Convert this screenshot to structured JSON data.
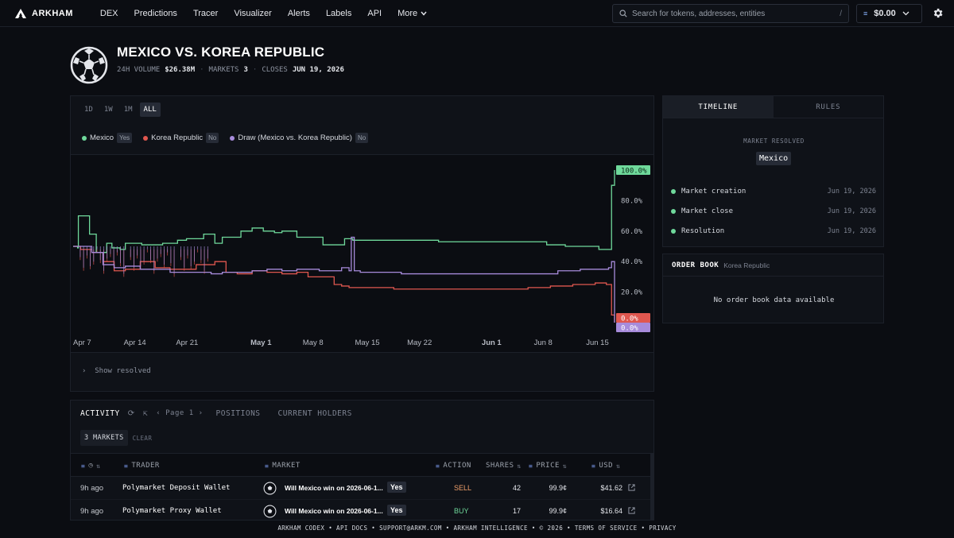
{
  "nav": {
    "brand": "ARKHAM",
    "links": [
      "DEX",
      "Predictions",
      "Tracer",
      "Visualizer",
      "Alerts",
      "Labels",
      "API",
      "More"
    ],
    "search_placeholder": "Search for tokens, addresses, entities",
    "search_shortcut": "/",
    "balance": "$0.00"
  },
  "event": {
    "title": "MEXICO VS. KOREA REPUBLIC",
    "volume_label": "24H VOLUME",
    "volume": "$26.38M",
    "markets_label": "MARKETS",
    "markets": "3",
    "closes_label": "CLOSES",
    "closes": "JUN 19, 2026"
  },
  "chart": {
    "ranges": [
      "1D",
      "1W",
      "1M",
      "ALL"
    ],
    "active_range": "ALL",
    "show_resolved": "Show resolved",
    "end_labels": [
      "100.0%",
      "0.0%",
      "0.0%"
    ]
  },
  "chart_data": {
    "type": "line",
    "x_ticks": [
      "Apr 7",
      "Apr 14",
      "Apr 21",
      "May 1",
      "May 8",
      "May 15",
      "May 22",
      "Jun 1",
      "Jun 8",
      "Jun 15"
    ],
    "y_ticks": [
      "100.0%",
      "80.0%",
      "60.0%",
      "40.0%",
      "20.0%"
    ],
    "ylim": [
      0,
      100
    ],
    "series": [
      {
        "name": "Mexico",
        "tag": "Yes",
        "color": "#6fd99b",
        "x": [
          0,
          0.6,
          0.7,
          1.8,
          2.2,
          3.1,
          4.5,
          5.2,
          6.3,
          7.0,
          8.0,
          9.2,
          10.5,
          12.0,
          14.0,
          15.2,
          17.5,
          19.0,
          20.0,
          22.5,
          24.0,
          25.5,
          27.0,
          28.0,
          30.0,
          31.5,
          33.5,
          35.0,
          36.4,
          37.5,
          40.0,
          43.0,
          46.0,
          49.0,
          52.0,
          55.0,
          58.0,
          61.5,
          63.5,
          66.0,
          68.5,
          70.5,
          71.8,
          72.2,
          72.6
        ],
        "values": [
          50,
          49,
          70,
          70,
          58,
          46,
          52,
          49,
          48,
          52,
          52,
          51,
          51,
          52,
          54,
          55,
          58,
          52,
          56,
          60,
          62,
          60,
          59,
          60,
          56,
          56,
          51,
          51,
          55,
          54,
          54,
          54,
          54,
          53,
          53,
          53,
          53,
          53,
          51,
          50,
          50,
          48,
          48,
          90,
          100
        ]
      },
      {
        "name": "Korea Republic",
        "tag": "No",
        "color": "#e0574f",
        "x": [
          0,
          1.0,
          2.5,
          4.0,
          5.5,
          7.0,
          9.0,
          11.0,
          13.0,
          15.0,
          16.5,
          18.0,
          19.0,
          20.5,
          22.0,
          24.0,
          26.0,
          28.0,
          30.0,
          31.5,
          33.0,
          35.0,
          36.0,
          37.0,
          40.0,
          43.0,
          46.0,
          49.0,
          52.0,
          55.0,
          58.0,
          61.0,
          64.0,
          67.0,
          70.0,
          71.5,
          72.0,
          72.2,
          72.6
        ],
        "values": [
          50,
          48,
          46,
          40,
          34,
          35,
          40,
          36,
          35,
          35,
          38,
          38,
          40,
          33,
          32,
          34,
          33,
          32,
          33,
          30,
          30,
          25,
          24,
          23,
          23,
          22,
          22,
          22,
          22,
          22,
          22,
          23,
          24,
          25,
          26,
          25,
          25,
          5,
          0
        ]
      },
      {
        "name": "Draw (Mexico vs. Korea Republic)",
        "tag": "No",
        "color": "#a78bdb",
        "x": [
          0,
          1.0,
          2.5,
          4.0,
          5.5,
          7.0,
          9.0,
          11.0,
          13.0,
          15.0,
          17.0,
          18.5,
          20.0,
          22.0,
          24.0,
          26.0,
          28.0,
          30.0,
          33.0,
          36.0,
          37.0,
          37.3,
          37.7,
          38.5,
          41.0,
          44.0,
          47.0,
          50.0,
          53.0,
          56.0,
          59.0,
          62.0,
          65.0,
          68.0,
          70.0,
          71.8,
          72.2,
          72.6
        ],
        "values": [
          50,
          50,
          46,
          38,
          36,
          37,
          35,
          35,
          33,
          33,
          33,
          32,
          33,
          33,
          34,
          35,
          34,
          35,
          34,
          36,
          34,
          56,
          34,
          33,
          33,
          32,
          32,
          32,
          32,
          32,
          32,
          32,
          34,
          35,
          35,
          36,
          40,
          0
        ]
      }
    ]
  },
  "timeline": {
    "tabs": [
      "TIMELINE",
      "RULES"
    ],
    "resolved_label": "MARKET RESOLVED",
    "resolved_value": "Mexico",
    "events": [
      {
        "label": "Market creation",
        "date": "Jun 19, 2026"
      },
      {
        "label": "Market close",
        "date": "Jun 19, 2026"
      },
      {
        "label": "Resolution",
        "date": "Jun 19, 2026"
      }
    ]
  },
  "orderbook": {
    "title": "ORDER BOOK",
    "market": "Korea Republic",
    "empty": "No order book data available"
  },
  "activity": {
    "tabs": [
      "ACTIVITY",
      "POSITIONS",
      "CURRENT HOLDERS"
    ],
    "page": "Page 1",
    "markets_filter": "3 MARKETS",
    "clear": "CLEAR",
    "columns": {
      "trader": "TRADER",
      "market": "MARKET",
      "action": "ACTION",
      "shares": "SHARES",
      "price": "PRICE",
      "usd": "USD"
    },
    "rows": [
      {
        "time": "9h ago",
        "trader": "Polymarket Deposit Wallet",
        "market": "Will Mexico win on 2026-06-1...",
        "outcome": "Yes",
        "action": "SELL",
        "shares": "42",
        "price": "99.9¢",
        "usd": "$41.62"
      },
      {
        "time": "9h ago",
        "trader": "Polymarket Proxy Wallet",
        "market": "Will Mexico win on 2026-06-1...",
        "outcome": "Yes",
        "action": "BUY",
        "shares": "17",
        "price": "99.9¢",
        "usd": "$16.64"
      }
    ]
  },
  "footer": "ARKHAM CODEX • API DOCS • SUPPORT@ARKM.COM • ARKHAM INTELLIGENCE • © 2026 • TERMS OF SERVICE • PRIVACY"
}
